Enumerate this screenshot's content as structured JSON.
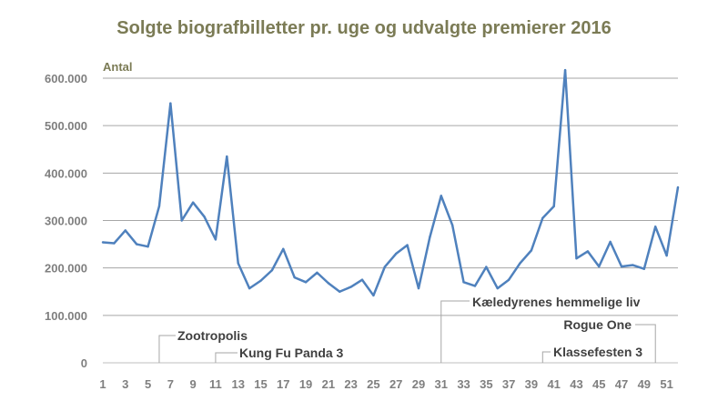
{
  "chart_data": {
    "type": "line",
    "title": "Solgte biografbilletter pr. uge og udvalgte premierer 2016",
    "ylabel": "Antal",
    "xlabel": "",
    "ylim": [
      0,
      600000
    ],
    "y_ticks": [
      0,
      100000,
      200000,
      300000,
      400000,
      500000,
      600000
    ],
    "y_tick_labels": [
      "0",
      "100.000",
      "200.000",
      "300.000",
      "400.000",
      "500.000",
      "600.000"
    ],
    "x_tick_labels": [
      "1",
      "3",
      "5",
      "7",
      "9",
      "11",
      "13",
      "15",
      "17",
      "19",
      "21",
      "23",
      "25",
      "27",
      "29",
      "31",
      "33",
      "35",
      "37",
      "39",
      "41",
      "43",
      "45",
      "47",
      "49",
      "51"
    ],
    "grid": true,
    "legend": "none",
    "line_color": "#4f81bd",
    "series": [
      {
        "x": [
          1,
          2,
          3,
          4,
          5,
          6,
          7,
          8,
          9,
          10,
          11,
          12,
          13,
          14,
          15,
          16,
          17,
          18,
          19,
          20,
          21,
          22,
          23,
          24,
          25,
          26,
          27,
          28,
          29,
          30,
          31,
          32,
          33,
          34,
          35,
          36,
          37,
          38,
          39,
          40,
          41,
          42,
          43,
          44,
          45,
          46,
          47,
          48,
          49,
          50,
          51,
          52
        ],
        "values": [
          254000,
          252000,
          279000,
          250000,
          245000,
          330000,
          547000,
          300000,
          338000,
          308000,
          260000,
          435000,
          210000,
          157000,
          173000,
          195000,
          240000,
          180000,
          170000,
          190000,
          168000,
          150000,
          160000,
          175000,
          142000,
          202000,
          230000,
          248000,
          157000,
          265000,
          352000,
          290000,
          170000,
          162000,
          202000,
          157000,
          175000,
          210000,
          237000,
          305000,
          330000,
          617000,
          220000,
          235000,
          203000,
          255000,
          203000,
          206000,
          198000,
          287000,
          226000,
          370000
        ]
      }
    ],
    "annotations": [
      {
        "text": "Zootropolis",
        "week": 6
      },
      {
        "text": "Kung Fu Panda 3",
        "week": 11
      },
      {
        "text": "Kæledyrenes hemmelige liv",
        "week": 31
      },
      {
        "text": "Rogue One",
        "week": 50
      },
      {
        "text": "Klassefesten 3",
        "week": 40
      }
    ]
  }
}
